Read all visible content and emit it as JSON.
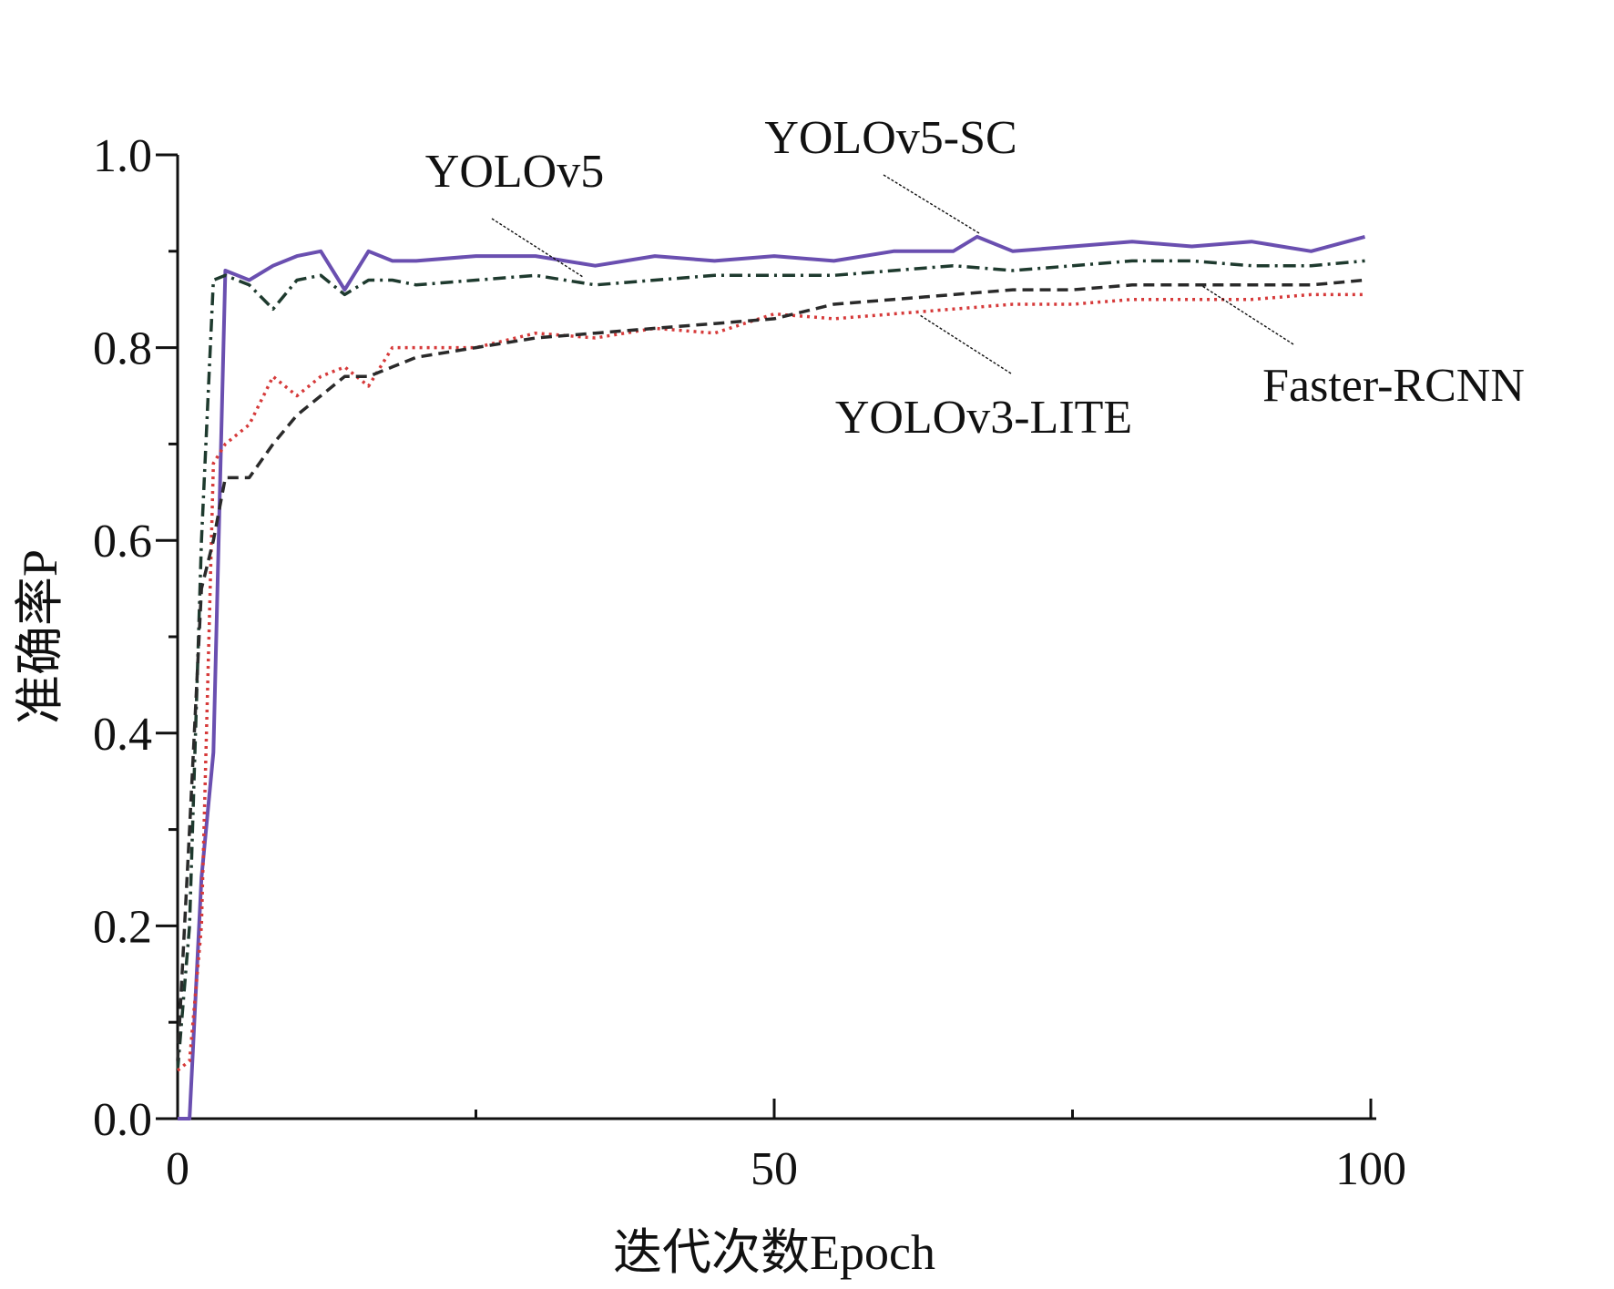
{
  "chart_data": {
    "type": "line",
    "title": "",
    "xlabel": "迭代次数Epoch",
    "ylabel": "准确率P",
    "xlim": [
      0,
      100
    ],
    "ylim": [
      0,
      1.0
    ],
    "x_ticks": [
      "0",
      "50",
      "100"
    ],
    "y_ticks": [
      "0.0",
      "0.2",
      "0.4",
      "0.6",
      "0.8",
      "1.0"
    ],
    "grid": false,
    "legend": "inline annotations with leader lines",
    "series": [
      {
        "name": "YOLOv5-SC",
        "color": "#6a4fb0",
        "style": "solid",
        "x": [
          0,
          1,
          2,
          3,
          4,
          6,
          8,
          10,
          12,
          14,
          16,
          18,
          20,
          25,
          30,
          35,
          40,
          45,
          50,
          55,
          60,
          65,
          67,
          70,
          75,
          80,
          85,
          90,
          95,
          99.5
        ],
        "y": [
          0.0,
          0.0,
          0.25,
          0.38,
          0.88,
          0.87,
          0.885,
          0.895,
          0.9,
          0.86,
          0.9,
          0.89,
          0.89,
          0.895,
          0.895,
          0.885,
          0.895,
          0.89,
          0.895,
          0.89,
          0.9,
          0.9,
          0.915,
          0.9,
          0.905,
          0.91,
          0.905,
          0.91,
          0.9,
          0.915
        ]
      },
      {
        "name": "YOLOv5",
        "color": "#1e3a2e",
        "style": "dashdot",
        "x": [
          0,
          1,
          2,
          3,
          4,
          6,
          8,
          10,
          12,
          14,
          16,
          18,
          20,
          25,
          30,
          35,
          40,
          45,
          50,
          55,
          60,
          65,
          70,
          75,
          80,
          85,
          90,
          95,
          99.5
        ],
        "y": [
          0.05,
          0.2,
          0.6,
          0.87,
          0.875,
          0.865,
          0.84,
          0.87,
          0.875,
          0.855,
          0.87,
          0.87,
          0.865,
          0.87,
          0.875,
          0.865,
          0.87,
          0.875,
          0.875,
          0.875,
          0.88,
          0.885,
          0.88,
          0.885,
          0.89,
          0.89,
          0.885,
          0.885,
          0.89
        ]
      },
      {
        "name": "YOLOv3-LITE",
        "color": "#d63a3a",
        "style": "dotted",
        "x": [
          0,
          1,
          2,
          3,
          4,
          6,
          8,
          10,
          12,
          14,
          16,
          18,
          20,
          25,
          30,
          35,
          40,
          45,
          50,
          55,
          60,
          65,
          70,
          75,
          80,
          85,
          90,
          95,
          99.5
        ],
        "y": [
          0.05,
          0.06,
          0.2,
          0.68,
          0.7,
          0.72,
          0.77,
          0.75,
          0.77,
          0.78,
          0.76,
          0.8,
          0.8,
          0.8,
          0.815,
          0.81,
          0.82,
          0.815,
          0.835,
          0.83,
          0.835,
          0.84,
          0.845,
          0.845,
          0.85,
          0.85,
          0.85,
          0.855,
          0.855
        ]
      },
      {
        "name": "Faster-RCNN",
        "color": "#2a2a2a",
        "style": "dashed",
        "x": [
          0,
          1,
          2,
          3,
          4,
          6,
          8,
          10,
          12,
          14,
          16,
          18,
          20,
          25,
          30,
          35,
          40,
          45,
          50,
          55,
          60,
          65,
          70,
          75,
          80,
          85,
          90,
          95,
          99.5
        ],
        "y": [
          0.06,
          0.3,
          0.55,
          0.6,
          0.665,
          0.665,
          0.7,
          0.73,
          0.75,
          0.77,
          0.77,
          0.78,
          0.79,
          0.8,
          0.81,
          0.815,
          0.82,
          0.825,
          0.83,
          0.845,
          0.85,
          0.855,
          0.86,
          0.86,
          0.865,
          0.865,
          0.865,
          0.865,
          0.87
        ]
      }
    ],
    "annotations": [
      {
        "text": "YOLOv5",
        "series": "YOLOv5"
      },
      {
        "text": "YOLOv5-SC",
        "series": "YOLOv5-SC"
      },
      {
        "text": "YOLOv3-LITE",
        "series": "YOLOv3-LITE"
      },
      {
        "text": "Faster-RCNN",
        "series": "Faster-RCNN"
      }
    ]
  }
}
